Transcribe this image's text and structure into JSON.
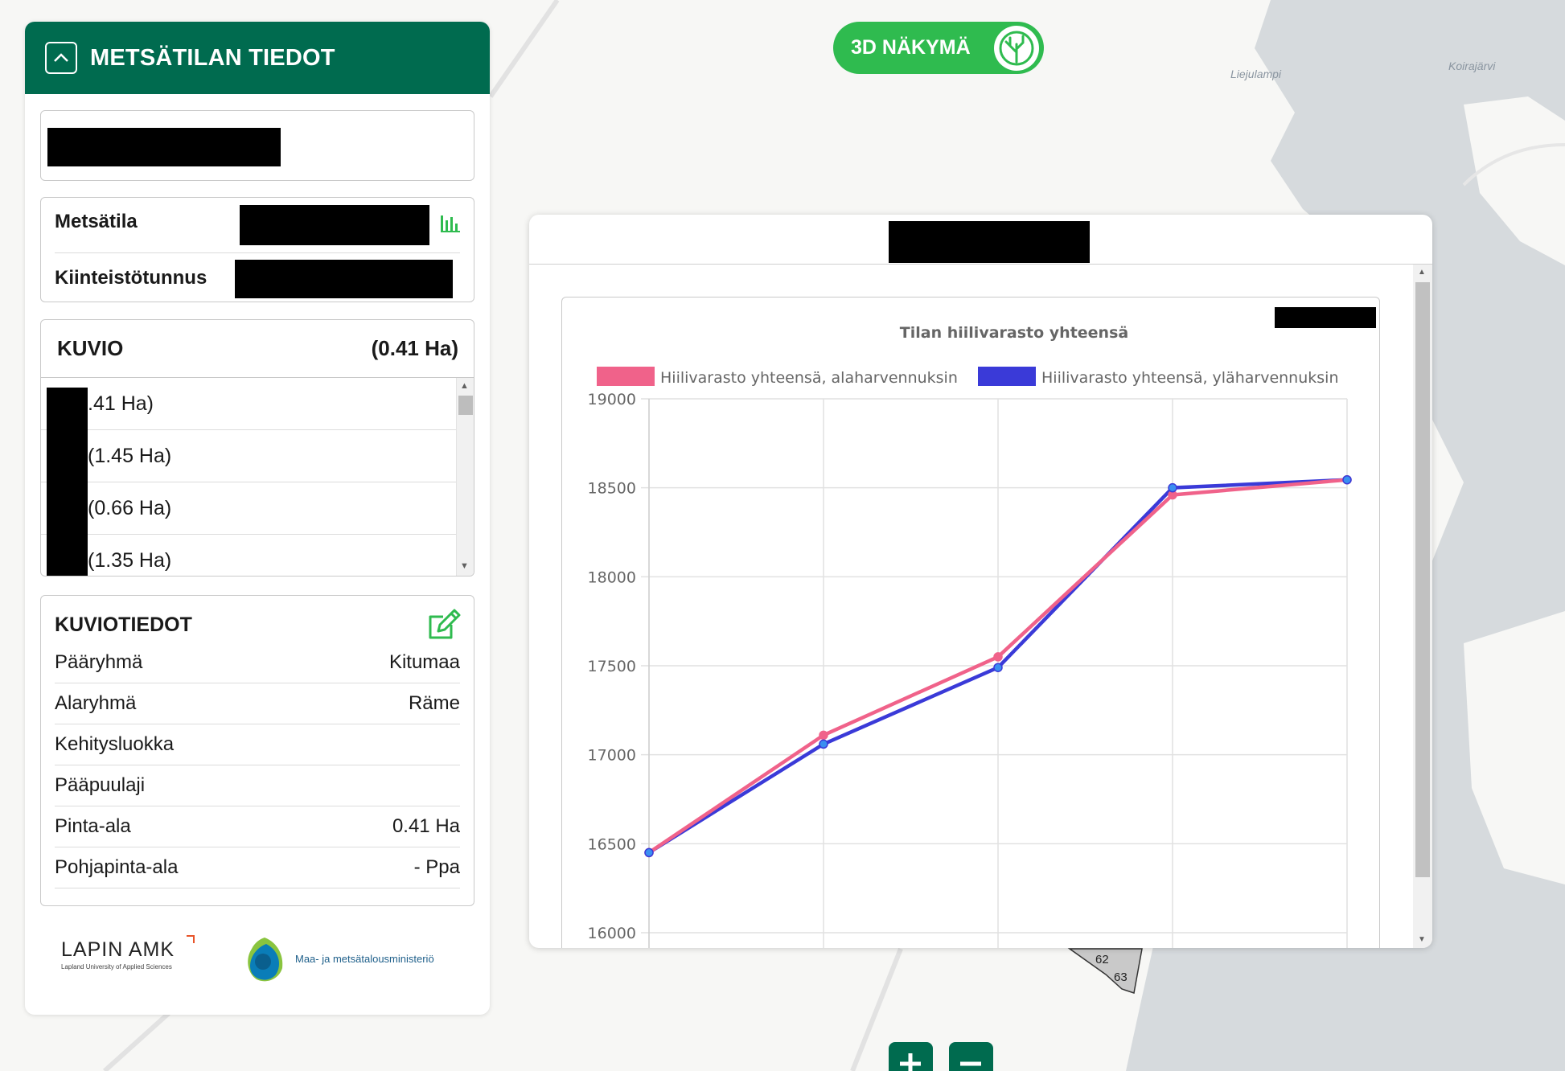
{
  "map": {
    "labels": [
      "Liejulampi",
      "Koirajärvi"
    ],
    "parcel_labels": [
      "62",
      "63"
    ]
  },
  "panel": {
    "title": "METSÄTILAN TIEDOT",
    "info": {
      "metsatila_label": "Metsätila",
      "kiinteistotunnus_label": "Kiinteistötunnus"
    },
    "kuvio": {
      "title": "KUVIO",
      "area": "(0.41 Ha)",
      "items": [
        ".41 Ha)",
        "(1.45 Ha)",
        "(0.66 Ha)",
        "(1.35 Ha)"
      ]
    },
    "kuviotiedot": {
      "title": "KUVIOTIEDOT",
      "rows": [
        {
          "label": "Pääryhmä",
          "value": "Kitumaa"
        },
        {
          "label": "Alaryhmä",
          "value": "Räme"
        },
        {
          "label": "Kehitysluokka",
          "value": ""
        },
        {
          "label": "Pääpuulaji",
          "value": ""
        },
        {
          "label": "Pinta-ala",
          "value": "0.41 Ha"
        },
        {
          "label": "Pohjapinta-ala",
          "value": "- Ppa"
        }
      ]
    },
    "logos": {
      "lapin_name": "LAPIN AMK",
      "lapin_sub": "Lapland University of Applied Sciences",
      "ministry": "Maa- ja metsätalousministeriö"
    }
  },
  "button_3d": {
    "label": "3D NÄKYMÄ"
  },
  "colors": {
    "brand_green": "#006b4f",
    "button_green": "#2fbb4f",
    "series_pink": "#f0628a",
    "series_blue": "#3a3ad8"
  },
  "chart_data": {
    "type": "line",
    "title": "Tilan hiilivarasto yhteensä",
    "x": [
      1,
      2,
      3,
      4,
      5
    ],
    "ylim": [
      16000,
      19000
    ],
    "yticks": [
      16000,
      16500,
      17000,
      17500,
      18000,
      18500,
      19000
    ],
    "grid": true,
    "legend_position": "top",
    "series": [
      {
        "name": "Hiilivarasto yhteensä, alaharvennuksin",
        "color": "#f0628a",
        "values": [
          16450,
          17110,
          17550,
          18460,
          18545
        ]
      },
      {
        "name": "Hiilivarasto yhteensä, yläharvennuksin",
        "color": "#3a3ad8",
        "values": [
          16450,
          17060,
          17490,
          18500,
          18545
        ]
      }
    ]
  }
}
